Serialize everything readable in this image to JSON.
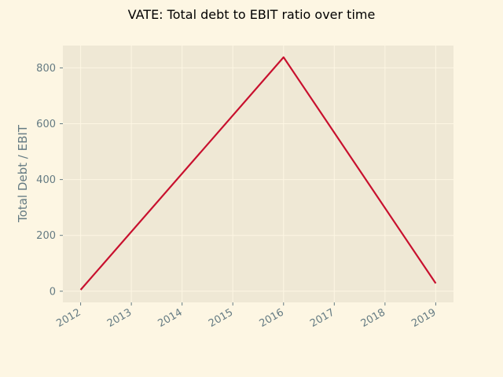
{
  "chart_data": {
    "type": "line",
    "title": "VATE: Total debt to EBIT ratio over time",
    "xlabel": "",
    "ylabel": "Total Debt / EBIT",
    "x": [
      "2012",
      "2013",
      "2014",
      "2015",
      "2016",
      "2017",
      "2018",
      "2019"
    ],
    "series": [
      {
        "x": [
          2012,
          2016,
          2019
        ],
        "values": [
          5,
          838,
          28
        ],
        "color": "#c8102e"
      }
    ],
    "xlim": [
      2011.65,
      2019.35
    ],
    "ylim": [
      -40,
      880
    ],
    "yticks": [
      0,
      200,
      400,
      600,
      800
    ],
    "grid": true,
    "colors": {
      "figure_bg": "#fdf6e3",
      "axes_bg": "#efe8d5",
      "grid": "#fdf6e3",
      "text": "#657b83",
      "line": "#c8102e"
    }
  }
}
